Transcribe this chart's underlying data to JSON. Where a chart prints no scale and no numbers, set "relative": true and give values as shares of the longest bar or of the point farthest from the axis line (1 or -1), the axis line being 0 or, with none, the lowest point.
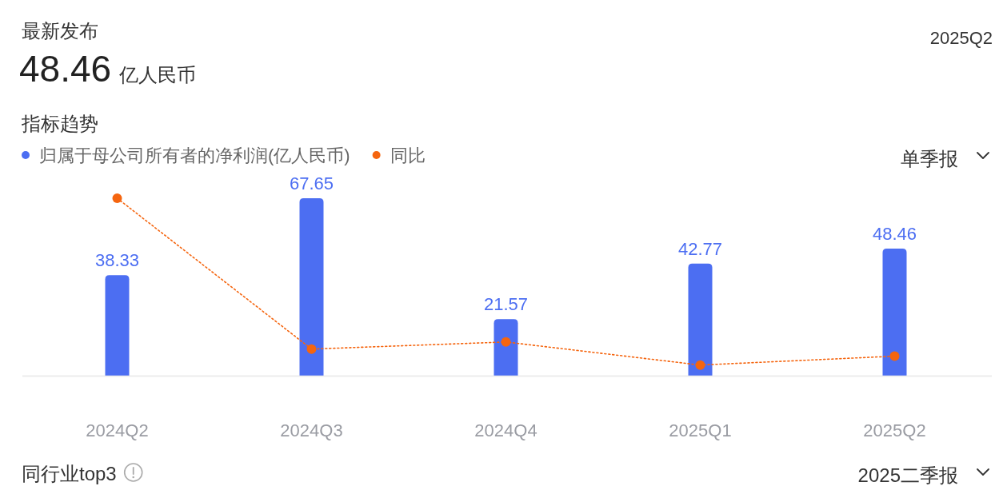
{
  "chart_data": [
    {
      "type": "bar",
      "title": "指标趋势",
      "categories": [
        "2024Q2",
        "2024Q3",
        "2024Q4",
        "2025Q1",
        "2025Q2"
      ],
      "tick_labels": "x",
      "series": [
        {
          "name": "归属于母公司所有者的净利润(亿人民币)",
          "type": "bar",
          "color": "#4c6ef2",
          "values": [
            38.33,
            67.65,
            21.57,
            42.77,
            48.46
          ],
          "value_labels": [
            "38.33",
            "67.65",
            "21.57",
            "42.77",
            "48.46"
          ]
        }
      ],
      "legend": "top left",
      "annotations": [
        "最新发布",
        "48.46",
        "亿人民币",
        "2025Q2",
        "单季报",
        "同行业top3",
        "2025二季报"
      ]
    },
    {
      "type": "line",
      "categories": [
        null,
        null,
        null,
        null,
        null
      ],
      "relative": true,
      "tick_labels": false,
      "series": [
        {
          "name": "同比",
          "color": "#f5650f",
          "values": [
            1,
            0.15,
            0.19,
            0.06,
            0.11
          ]
        }
      ],
      "marker": "circle",
      "line_style": "dotted",
      "legend": "top left"
    }
  ]
}
